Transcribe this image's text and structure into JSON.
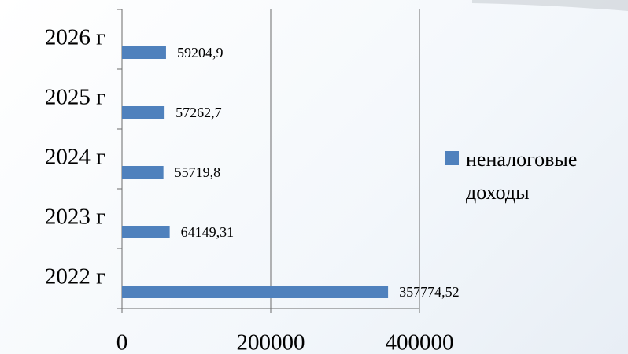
{
  "chart_data": {
    "type": "bar",
    "orientation": "horizontal",
    "categories": [
      "2022 г",
      "2023 г",
      "2024 г",
      "2025 г",
      "2026 г"
    ],
    "series": [
      {
        "name": "неналоговые доходы",
        "color": "#4f81bd",
        "values": [
          357774.52,
          64149.31,
          55719.8,
          57262.7,
          59204.9
        ],
        "value_labels": [
          "357774,52",
          "64149,31",
          "55719,8",
          "57262,7",
          "59204,9"
        ]
      }
    ],
    "xlim": [
      0,
      400000
    ],
    "xticks": [
      0,
      200000,
      400000
    ],
    "grid": true,
    "legend": "right"
  }
}
